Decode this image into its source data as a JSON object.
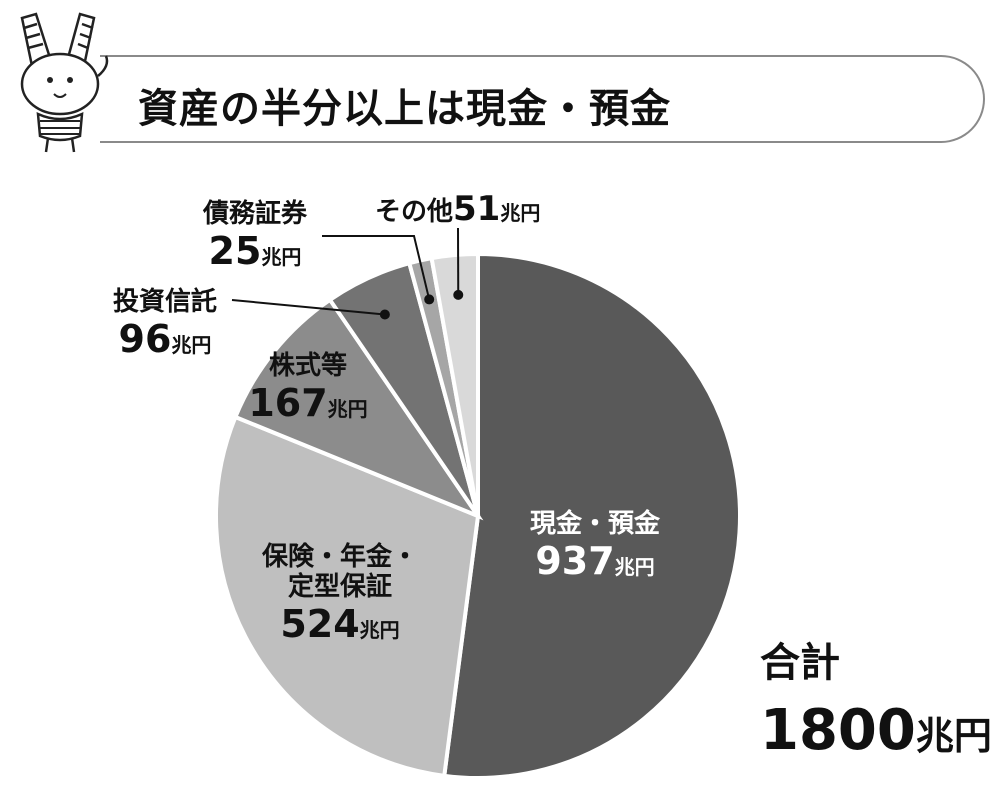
{
  "title": "資産の半分以上は現金・預金",
  "unit": "兆円",
  "total": {
    "label": "合計",
    "value": "1800",
    "unit": "兆円"
  },
  "colors": {
    "cash": "#595959",
    "insurance": "#bfbfbf",
    "stocks": "#8c8c8c",
    "trusts": "#737373",
    "bonds": "#a6a6a6",
    "other": "#d9d9d9"
  },
  "chart_data": {
    "type": "pie",
    "title": "資産の半分以上は現金・預金",
    "unit": "兆円",
    "slices": [
      {
        "key": "cash",
        "label": "現金・預金",
        "value": 937
      },
      {
        "key": "insurance",
        "label": "保険・年金・定型保証",
        "value": 524
      },
      {
        "key": "stocks",
        "label": "株式等",
        "value": 167
      },
      {
        "key": "trusts",
        "label": "投資信託",
        "value": 96
      },
      {
        "key": "bonds",
        "label": "債務証券",
        "value": 25
      },
      {
        "key": "other",
        "label": "その他",
        "value": 51
      }
    ],
    "labels_display": {
      "cash": [
        "現金・預金"
      ],
      "insurance": [
        "保険・年金・",
        "定型保証"
      ],
      "stocks": [
        "株式等"
      ],
      "trusts": [
        "投資信託"
      ],
      "bonds": [
        "債務証券"
      ],
      "other": [
        "その他"
      ]
    }
  }
}
